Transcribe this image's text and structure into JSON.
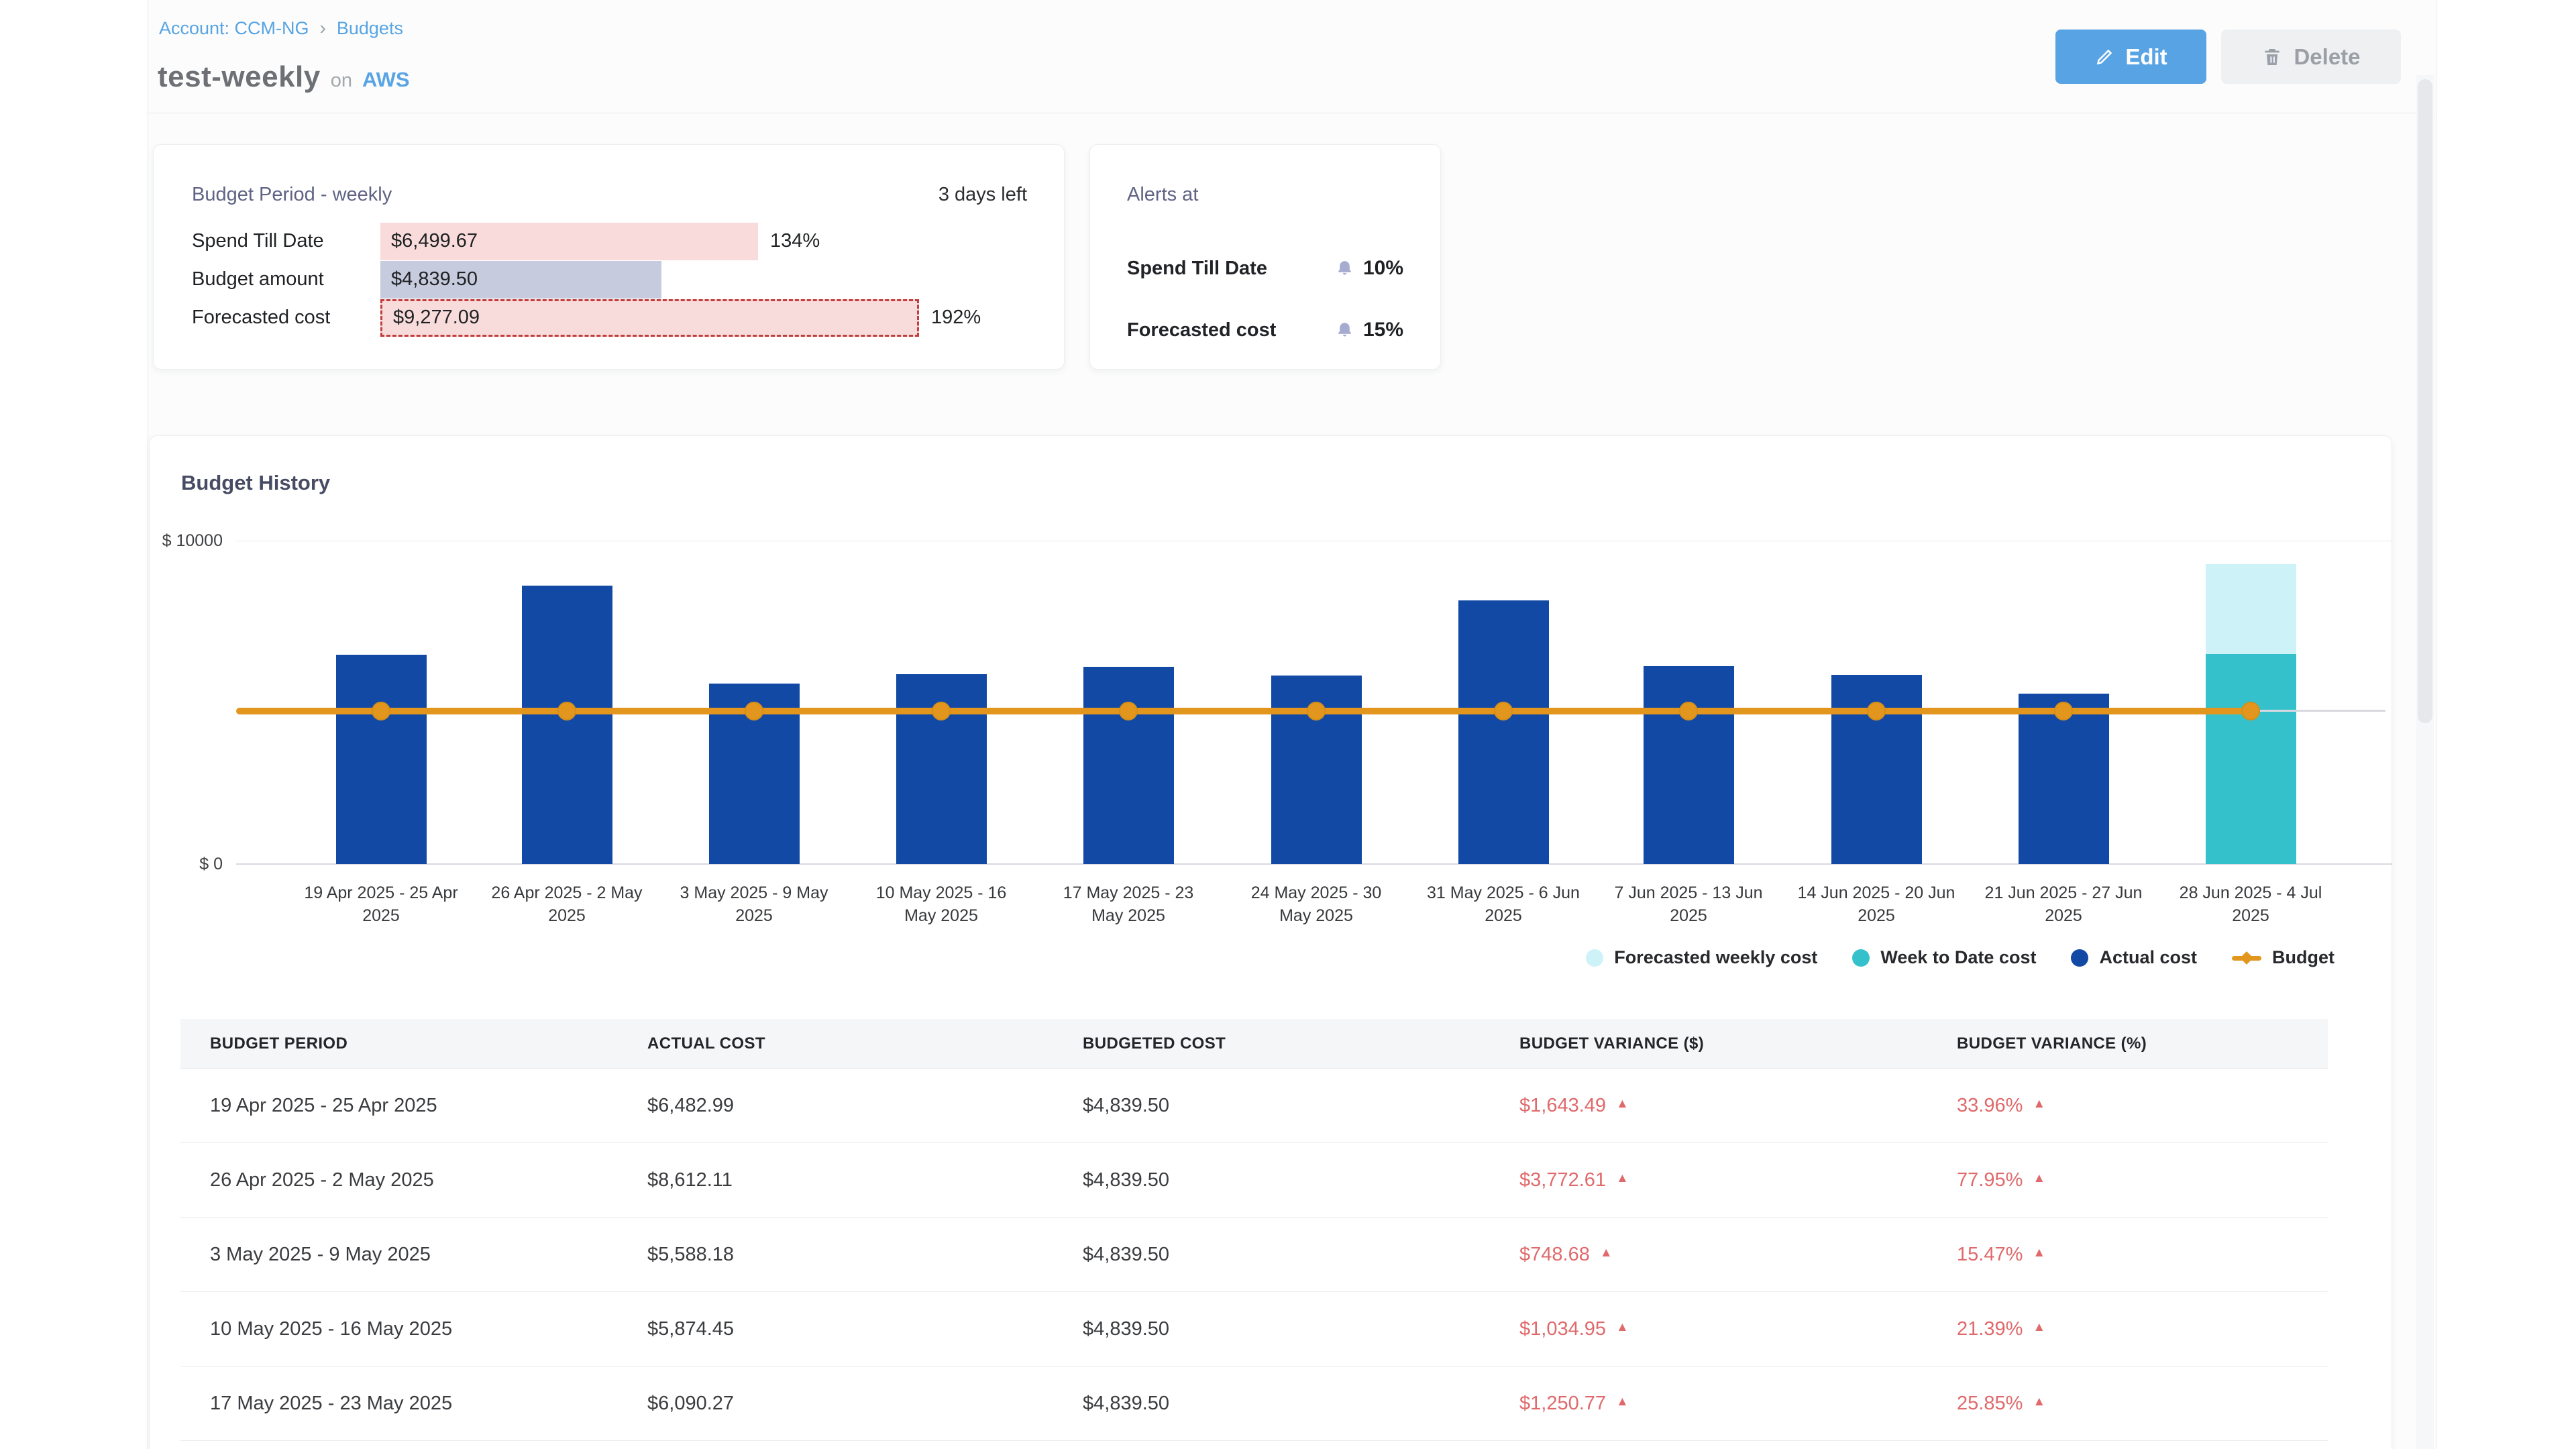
{
  "header": {
    "breadcrumb": {
      "account": "Account: CCM-NG",
      "separator": "›",
      "section": "Budgets"
    },
    "title": "test-weekly",
    "conjunction": "on",
    "provider": "AWS",
    "edit_label": "Edit",
    "delete_label": "Delete"
  },
  "budget_period_card": {
    "title": "Budget Period - weekly",
    "days_left": "3 days left",
    "budget_numeric": 4839.5,
    "rows": [
      {
        "label": "Spend Till Date",
        "value": "$6,499.67",
        "numeric": 6499.67,
        "percent": "134%",
        "variant": "spend"
      },
      {
        "label": "Budget amount",
        "value": "$4,839.50",
        "numeric": 4839.5,
        "percent": "",
        "variant": "budget"
      },
      {
        "label": "Forecasted cost",
        "value": "$9,277.09",
        "numeric": 9277.09,
        "percent": "192%",
        "variant": "forecast"
      }
    ]
  },
  "alerts_card": {
    "title": "Alerts at",
    "rows": [
      {
        "label": "Spend Till Date",
        "threshold": "10%"
      },
      {
        "label": "Forecasted cost",
        "threshold": "15%"
      }
    ]
  },
  "chart_card": {
    "title": "Budget History"
  },
  "chart_data": {
    "type": "bar",
    "title": "Budget History",
    "x": [
      "19 Apr 2025 - 25 Apr 2025",
      "26 Apr 2025 - 2 May 2025",
      "3 May 2025 - 9 May 2025",
      "10 May 2025 - 16 May 2025",
      "17 May 2025 - 23 May 2025",
      "24 May 2025 - 30 May 2025",
      "31 May 2025 - 6 Jun 2025",
      "7 Jun 2025 - 13 Jun 2025",
      "14 Jun 2025 - 20 Jun 2025",
      "21 Jun 2025 - 27 Jun 2025",
      "28 Jun 2025 - 4 Jul 2025"
    ],
    "series": [
      {
        "name": "Actual cost",
        "color": "#1249a5",
        "values": [
          6482.99,
          8612.11,
          5588.18,
          5874.45,
          6090.27,
          5820,
          8160,
          6130,
          5860,
          5260,
          null
        ]
      },
      {
        "name": "Week to Date cost",
        "color": "#35c1cb",
        "values": [
          null,
          null,
          null,
          null,
          null,
          null,
          null,
          null,
          null,
          null,
          6499.67
        ]
      },
      {
        "name": "Forecasted weekly cost",
        "color": "#cdf2f8",
        "values": [
          null,
          null,
          null,
          null,
          null,
          null,
          null,
          null,
          null,
          null,
          9277.09
        ]
      },
      {
        "name": "Budget",
        "type": "line",
        "color": "#e2961e",
        "value": 4839.5
      }
    ],
    "legend": [
      {
        "label": "Forecasted weekly cost",
        "swatch": "dot",
        "color": "#cdf2f8"
      },
      {
        "label": "Week to Date cost",
        "swatch": "dot",
        "color": "#35c1cb"
      },
      {
        "label": "Actual cost",
        "swatch": "dot",
        "color": "#1249a5"
      },
      {
        "label": "Budget",
        "swatch": "line",
        "color": "#e2961e"
      }
    ],
    "ylim": [
      0,
      10000
    ],
    "ytick_labels": [
      "$ 10000",
      "$ 0"
    ],
    "grid": true,
    "legend_position": "bottom-right"
  },
  "table": {
    "columns": [
      "BUDGET PERIOD",
      "ACTUAL COST",
      "BUDGETED COST",
      "BUDGET VARIANCE ($)",
      "BUDGET VARIANCE (%)"
    ],
    "rows": [
      {
        "period": "19 Apr 2025 - 25 Apr 2025",
        "actual_cost": "$6,482.99",
        "budgeted_cost": "$4,839.50",
        "variance_usd": "$1,643.49",
        "variance_pct": "33.96%",
        "direction": "up"
      },
      {
        "period": "26 Apr 2025 - 2 May 2025",
        "actual_cost": "$8,612.11",
        "budgeted_cost": "$4,839.50",
        "variance_usd": "$3,772.61",
        "variance_pct": "77.95%",
        "direction": "up"
      },
      {
        "period": "3 May 2025 - 9 May 2025",
        "actual_cost": "$5,588.18",
        "budgeted_cost": "$4,839.50",
        "variance_usd": "$748.68",
        "variance_pct": "15.47%",
        "direction": "up"
      },
      {
        "period": "10 May 2025 - 16 May 2025",
        "actual_cost": "$5,874.45",
        "budgeted_cost": "$4,839.50",
        "variance_usd": "$1,034.95",
        "variance_pct": "21.39%",
        "direction": "up"
      },
      {
        "period": "17 May 2025 - 23 May 2025",
        "actual_cost": "$6,090.27",
        "budgeted_cost": "$4,839.50",
        "variance_usd": "$1,250.77",
        "variance_pct": "25.85%",
        "direction": "up"
      }
    ],
    "up_glyph": "▲"
  },
  "colors": {
    "actual_bar": "#1249a5",
    "week_to_date_bar": "#35c1cb",
    "forecast_bar": "#cdf2f8",
    "budget_line": "#e2961e",
    "variance_red": "#e0696b",
    "spend_pill": "#f8dbda",
    "budget_pill": "#c6cbde",
    "forecast_pill_border": "#c23d3d",
    "link_blue": "#58a4e4",
    "edit_button": "#58a3e4",
    "alert_bell": "#a6abd0"
  }
}
